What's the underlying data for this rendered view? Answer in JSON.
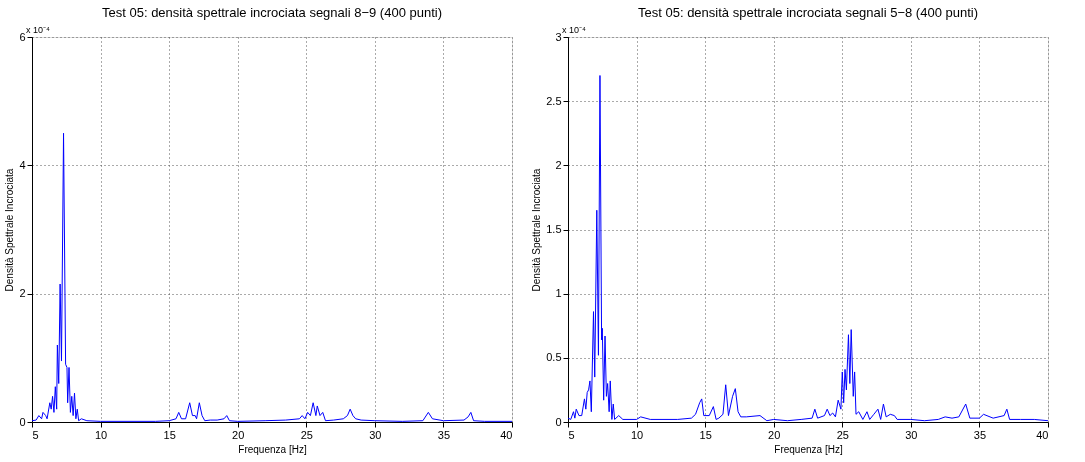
{
  "chart_data": [
    {
      "type": "line",
      "title": "Test 05: densità spettrale incrociata segnali 8−9 (400 punti)",
      "xlabel": "Frequenza [Hz]",
      "ylabel": "Densità Spettrale Incrociata",
      "annotations": [
        "x 10⁻⁴"
      ],
      "xlim": [
        5,
        40
      ],
      "xticks": [
        5,
        10,
        15,
        20,
        25,
        30,
        35,
        40
      ],
      "ylim": [
        0,
        6
      ],
      "yticks": [
        0,
        2,
        4,
        6
      ],
      "grid": true,
      "line_style": "solid",
      "marker": "none",
      "series": [
        {
          "color": "#0000ff",
          "x": [
            5.0,
            5.3,
            5.5,
            5.7,
            5.8,
            6.0,
            6.1,
            6.3,
            6.4,
            6.5,
            6.6,
            6.7,
            6.8,
            6.85,
            6.95,
            7.05,
            7.15,
            7.3,
            7.45,
            7.55,
            7.6,
            7.7,
            7.8,
            7.9,
            8.0,
            8.1,
            8.2,
            8.3,
            8.4,
            8.6,
            9.0,
            10,
            12,
            14,
            15,
            15.5,
            15.7,
            15.9,
            16.2,
            16.5,
            16.7,
            16.9,
            17.0,
            17.2,
            17.4,
            17.6,
            18,
            18.5,
            19.0,
            19.2,
            19.4,
            20,
            22,
            23.5,
            24.5,
            24.7,
            24.9,
            25.1,
            25.3,
            25.5,
            25.7,
            25.8,
            26.0,
            26.2,
            26.4,
            27,
            27.7,
            28.0,
            28.2,
            28.4,
            28.6,
            29,
            30,
            32,
            33.5,
            33.9,
            34.2,
            35,
            36.5,
            36.8,
            37.0,
            37.2,
            38,
            40
          ],
          "values": [
            0.02,
            0.03,
            0.1,
            0.05,
            0.15,
            0.1,
            0.05,
            0.3,
            0.2,
            0.4,
            0.15,
            0.55,
            0.2,
            1.2,
            0.6,
            2.15,
            0.95,
            4.5,
            0.9,
            0.85,
            0.3,
            0.85,
            0.15,
            0.4,
            0.1,
            0.45,
            0.05,
            0.2,
            0.02,
            0.05,
            0.02,
            0.01,
            0.01,
            0.01,
            0.02,
            0.05,
            0.15,
            0.05,
            0.05,
            0.3,
            0.1,
            0.1,
            0.05,
            0.3,
            0.1,
            0.02,
            0.03,
            0.03,
            0.05,
            0.1,
            0.02,
            0.01,
            0.02,
            0.03,
            0.05,
            0.1,
            0.05,
            0.15,
            0.1,
            0.3,
            0.1,
            0.25,
            0.1,
            0.15,
            0.02,
            0.03,
            0.05,
            0.1,
            0.2,
            0.1,
            0.05,
            0.03,
            0.02,
            0.01,
            0.02,
            0.15,
            0.05,
            0.02,
            0.03,
            0.08,
            0.15,
            0.02,
            0.01,
            0.01
          ]
        }
      ]
    },
    {
      "type": "line",
      "title": "Test 05: densità spettrale incrociata segnali 5−8 (400 punti)",
      "xlabel": "Frequenza [Hz]",
      "ylabel": "Densità Spettrale Incrociata",
      "annotations": [
        "x 10⁻⁴"
      ],
      "xlim": [
        5,
        40
      ],
      "xticks": [
        5,
        10,
        15,
        20,
        25,
        30,
        35,
        40
      ],
      "ylim": [
        0,
        3
      ],
      "yticks": [
        0,
        0.5,
        1,
        1.5,
        2,
        2.5,
        3
      ],
      "grid": true,
      "line_style": "solid",
      "marker": "none",
      "series": [
        {
          "color": "#0000ff",
          "x": [
            5.0,
            5.2,
            5.4,
            5.5,
            5.6,
            5.8,
            6.0,
            6.2,
            6.3,
            6.4,
            6.5,
            6.6,
            6.7,
            6.86,
            6.95,
            7.1,
            7.22,
            7.33,
            7.45,
            7.5,
            7.6,
            7.7,
            7.8,
            7.89,
            8.0,
            8.08,
            8.2,
            8.3,
            8.4,
            8.7,
            9,
            10,
            10.3,
            11,
            12,
            13,
            14,
            14.3,
            14.6,
            14.75,
            14.9,
            15.3,
            15.6,
            15.8,
            16,
            16.3,
            16.5,
            16.7,
            17.0,
            17.2,
            17.4,
            17.6,
            18,
            19,
            19.5,
            20,
            21,
            22,
            22.8,
            23.0,
            23.2,
            23.7,
            23.9,
            24.1,
            24.3,
            24.5,
            24.7,
            24.9,
            25.0,
            25.1,
            25.2,
            25.3,
            25.45,
            25.55,
            25.65,
            25.8,
            25.9,
            26.0,
            26.2,
            26.5,
            26.8,
            27.0,
            27.3,
            27.6,
            27.8,
            28.0,
            28.2,
            28.5,
            28.8,
            29,
            30,
            31,
            32,
            32.5,
            33,
            33.5,
            34.0,
            34.3,
            35,
            35.3,
            36,
            36.8,
            37.0,
            37.2,
            38,
            39,
            40
          ],
          "values": [
            0.03,
            0.02,
            0.08,
            0.03,
            0.1,
            0.05,
            0.05,
            0.18,
            0.1,
            0.23,
            0.25,
            0.32,
            0.08,
            0.86,
            0.35,
            1.65,
            0.52,
            2.7,
            0.64,
            0.73,
            0.17,
            0.67,
            0.2,
            0.3,
            0.08,
            0.32,
            0.02,
            0.14,
            0.02,
            0.05,
            0.02,
            0.02,
            0.04,
            0.02,
            0.02,
            0.02,
            0.03,
            0.06,
            0.15,
            0.18,
            0.05,
            0.05,
            0.12,
            0.02,
            0.03,
            0.06,
            0.29,
            0.05,
            0.2,
            0.26,
            0.08,
            0.04,
            0.04,
            0.05,
            0.01,
            0.02,
            0.01,
            0.02,
            0.03,
            0.1,
            0.03,
            0.05,
            0.1,
            0.05,
            0.07,
            0.04,
            0.17,
            0.1,
            0.39,
            0.15,
            0.41,
            0.25,
            0.68,
            0.3,
            0.72,
            0.2,
            0.39,
            0.06,
            0.08,
            0.02,
            0.08,
            0.02,
            0.06,
            0.1,
            0.02,
            0.14,
            0.04,
            0.06,
            0.05,
            0.02,
            0.02,
            0.01,
            0.02,
            0.04,
            0.03,
            0.04,
            0.14,
            0.03,
            0.03,
            0.06,
            0.03,
            0.05,
            0.1,
            0.02,
            0.02,
            0.02,
            0.01
          ]
        }
      ]
    }
  ]
}
